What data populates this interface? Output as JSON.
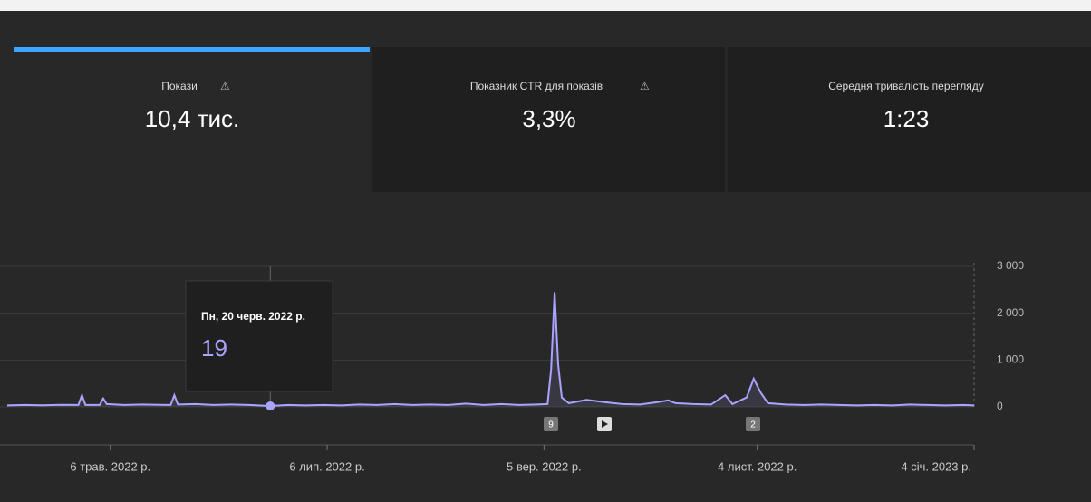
{
  "tabs": [
    {
      "title": "Покази",
      "value": "10,4 тис."
    },
    {
      "title": "Показник CTR для показів",
      "value": "3,3%"
    },
    {
      "title": "Середня тривалість перегляду",
      "value": "1:23"
    }
  ],
  "annotations": [
    "9",
    "2"
  ],
  "chart_data": {
    "type": "line",
    "x": [
      "2022-04-07",
      "2022-04-12",
      "2022-04-17",
      "2022-04-22",
      "2022-04-27",
      "2022-04-28",
      "2022-04-29",
      "2022-05-03",
      "2022-05-04",
      "2022-05-05",
      "2022-05-10",
      "2022-05-15",
      "2022-05-20",
      "2022-05-23",
      "2022-05-24",
      "2022-05-25",
      "2022-05-30",
      "2022-06-04",
      "2022-06-09",
      "2022-06-14",
      "2022-06-20",
      "2022-06-25",
      "2022-06-30",
      "2022-07-05",
      "2022-07-10",
      "2022-07-15",
      "2022-07-20",
      "2022-07-25",
      "2022-07-30",
      "2022-08-04",
      "2022-08-09",
      "2022-08-14",
      "2022-08-19",
      "2022-08-24",
      "2022-08-29",
      "2022-09-03",
      "2022-09-06",
      "2022-09-07",
      "2022-09-08",
      "2022-09-09",
      "2022-09-10",
      "2022-09-12",
      "2022-09-17",
      "2022-09-22",
      "2022-09-27",
      "2022-10-02",
      "2022-10-07",
      "2022-10-10",
      "2022-10-12",
      "2022-10-17",
      "2022-10-22",
      "2022-10-26",
      "2022-10-28",
      "2022-11-01",
      "2022-11-03",
      "2022-11-04",
      "2022-11-05",
      "2022-11-07",
      "2022-11-12",
      "2022-11-17",
      "2022-11-22",
      "2022-11-27",
      "2022-12-02",
      "2022-12-07",
      "2022-12-12",
      "2022-12-17",
      "2022-12-22",
      "2022-12-27",
      "2023-01-01",
      "2023-01-04"
    ],
    "series": [
      {
        "name": "Покази",
        "color": "#a9a4ff",
        "values": [
          30,
          40,
          35,
          45,
          40,
          250,
          40,
          40,
          180,
          60,
          40,
          50,
          45,
          40,
          250,
          50,
          60,
          40,
          50,
          40,
          19,
          40,
          30,
          40,
          30,
          50,
          40,
          60,
          40,
          50,
          40,
          70,
          40,
          60,
          40,
          50,
          60,
          800,
          2450,
          900,
          200,
          80,
          150,
          100,
          60,
          50,
          100,
          140,
          80,
          60,
          50,
          250,
          60,
          200,
          600,
          450,
          300,
          80,
          50,
          40,
          50,
          40,
          30,
          40,
          30,
          50,
          40,
          30,
          40,
          30
        ]
      }
    ],
    "xlim": [
      "2022-04-07",
      "2023-01-04"
    ],
    "xticks": [
      {
        "value": "2022-05-06",
        "label": "6 трав. 2022 р."
      },
      {
        "value": "2022-07-06",
        "label": "6 лип. 2022 р."
      },
      {
        "value": "2022-09-05",
        "label": "5 вер. 2022 р."
      },
      {
        "value": "2022-11-04",
        "label": "4 лист. 2022 р."
      },
      {
        "value": "2023-01-04",
        "label": "4 січ. 2023 р."
      }
    ],
    "ylim": [
      0,
      3000
    ],
    "yticks": [
      0,
      {
        "value": 1000,
        "label": "1 000"
      },
      {
        "value": 2000,
        "label": "2 000"
      },
      {
        "value": 3000,
        "label": "3 000"
      }
    ],
    "grid": true,
    "tooltip": {
      "x": "2022-06-20",
      "label": "Пн, 20 черв. 2022 р."
    }
  }
}
